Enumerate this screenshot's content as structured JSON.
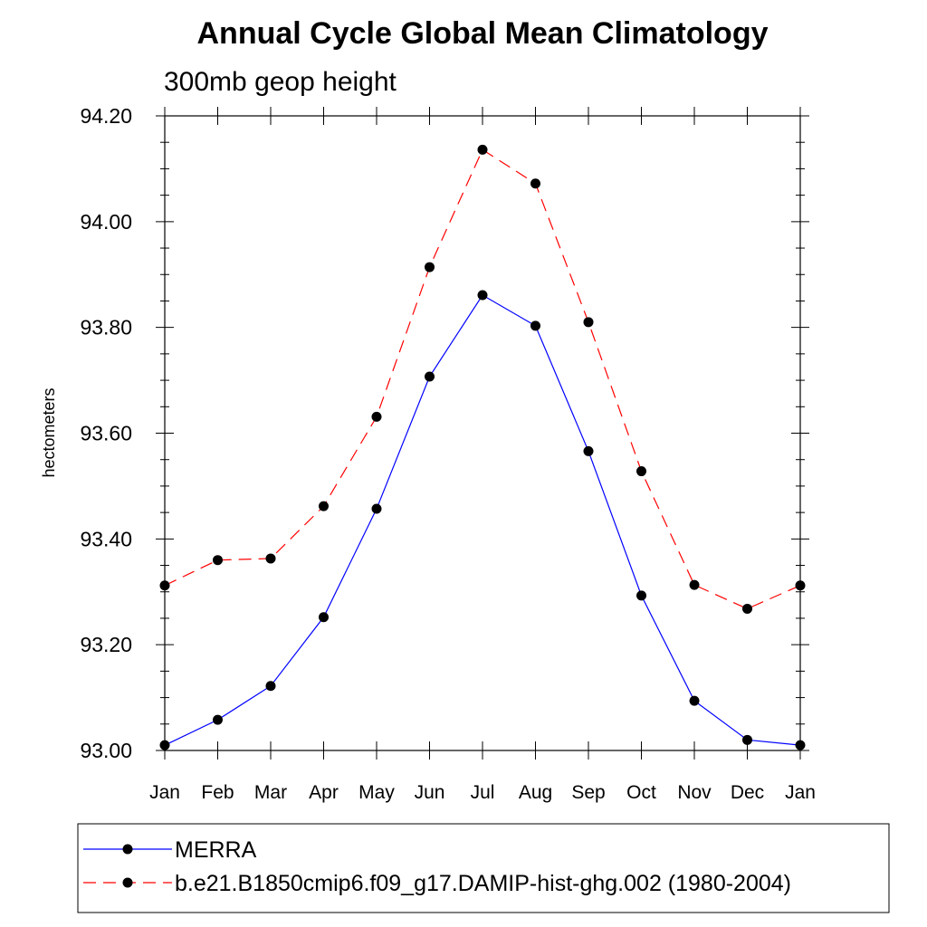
{
  "chart_data": {
    "type": "line",
    "title": "Annual Cycle Global Mean Climatology",
    "subtitle": "300mb geop height",
    "xlabel": "",
    "ylabel": "hectometers",
    "categories": [
      "Jan",
      "Feb",
      "Mar",
      "Apr",
      "May",
      "Jun",
      "Jul",
      "Aug",
      "Sep",
      "Oct",
      "Nov",
      "Dec",
      "Jan"
    ],
    "ylim": [
      93.0,
      94.2
    ],
    "yticks": [
      93.0,
      93.2,
      93.4,
      93.6,
      93.8,
      94.0,
      94.2
    ],
    "ytick_labels": [
      "93.00",
      "93.20",
      "93.40",
      "93.60",
      "93.80",
      "94.00",
      "94.20"
    ],
    "series": [
      {
        "name": "MERRA",
        "color": "#0000ff",
        "line_style": "solid",
        "values": [
          93.01,
          93.058,
          93.122,
          93.252,
          93.457,
          93.707,
          93.861,
          93.803,
          93.566,
          93.293,
          93.094,
          93.02,
          93.01
        ]
      },
      {
        "name": "b.e21.B1850cmip6.f09_g17.DAMIP-hist-ghg.002 (1980-2004)",
        "color": "#ff0000",
        "line_style": "dashed",
        "values": [
          93.312,
          93.36,
          93.363,
          93.462,
          93.631,
          93.914,
          94.136,
          94.072,
          93.81,
          93.528,
          93.313,
          93.268,
          93.312
        ]
      }
    ],
    "legend_position": "bottom"
  }
}
